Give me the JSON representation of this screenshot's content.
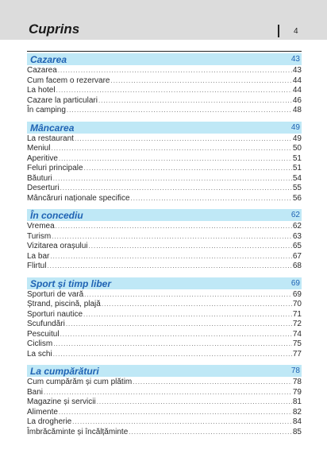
{
  "header": {
    "title": "Cuprins",
    "page_number": "4"
  },
  "sections": [
    {
      "title": "Cazarea",
      "page": "43",
      "entries": [
        {
          "label": "Cazarea",
          "page": "43"
        },
        {
          "label": "Cum facem o rezervare",
          "page": "44"
        },
        {
          "label": "La hotel",
          "page": "44"
        },
        {
          "label": "Cazare la particulari",
          "page": "46"
        },
        {
          "label": "În camping",
          "page": "48"
        }
      ]
    },
    {
      "title": "Mâncarea",
      "page": "49",
      "entries": [
        {
          "label": "La restaurant",
          "page": "49"
        },
        {
          "label": "Meniul",
          "page": "50"
        },
        {
          "label": "Aperitive",
          "page": "51"
        },
        {
          "label": "Feluri principale",
          "page": "51"
        },
        {
          "label": "Băuturi",
          "page": "54"
        },
        {
          "label": "Deserturi",
          "page": "55"
        },
        {
          "label": "Mâncăruri naționale specifice",
          "page": "56"
        }
      ]
    },
    {
      "title": "În concediu",
      "page": "62",
      "entries": [
        {
          "label": "Vremea",
          "page": "62"
        },
        {
          "label": "Turism",
          "page": "63"
        },
        {
          "label": "Vizitarea orașului",
          "page": "65"
        },
        {
          "label": "La bar",
          "page": "67"
        },
        {
          "label": "Flirtul",
          "page": "68"
        }
      ]
    },
    {
      "title": "Sport și timp liber",
      "page": "69",
      "entries": [
        {
          "label": "Sporturi de vară",
          "page": "69"
        },
        {
          "label": "Ștrand, piscină, plajă",
          "page": "70"
        },
        {
          "label": "Sporturi nautice",
          "page": "71"
        },
        {
          "label": "Scufundări",
          "page": "72"
        },
        {
          "label": "Pescuitul",
          "page": "74"
        },
        {
          "label": "Ciclism",
          "page": "75"
        },
        {
          "label": "La schi",
          "page": "77"
        }
      ]
    },
    {
      "title": "La cumpărături",
      "page": "78",
      "entries": [
        {
          "label": "Cum cumpărăm și cum plătim",
          "page": "78"
        },
        {
          "label": "Bani",
          "page": "79"
        },
        {
          "label": "Magazine și servicii",
          "page": "81"
        },
        {
          "label": "Alimente",
          "page": "82"
        },
        {
          "label": "La drogherie",
          "page": "84"
        },
        {
          "label": "Îmbrăcăminte și încălțăminte",
          "page": "85"
        }
      ]
    }
  ]
}
